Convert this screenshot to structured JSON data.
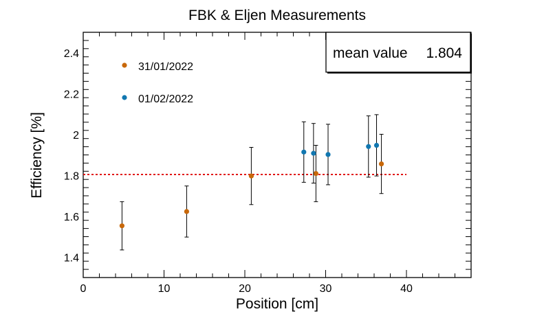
{
  "chart_data": {
    "type": "scatter",
    "title": "FBK & Eljen Measurements",
    "xlabel": "Position [cm]",
    "ylabel": "Efficiency [%]",
    "xlim": [
      0,
      48
    ],
    "ylim": [
      1.3,
      2.5
    ],
    "xticks": [
      0,
      10,
      20,
      30,
      40
    ],
    "yticks": [
      1.4,
      1.6,
      1.8,
      2.0,
      2.2,
      2.4
    ],
    "xtick_labels": [
      "0",
      "10",
      "20",
      "30",
      "40"
    ],
    "ytick_labels": [
      "1.4",
      "1.6",
      "1.8",
      "2",
      "2.2",
      "2.4"
    ],
    "series": [
      {
        "name": "31/01/2022",
        "color": "#c8680a",
        "points": [
          {
            "x": 4.8,
            "y": 1.553,
            "err": 0.118
          },
          {
            "x": 12.8,
            "y": 1.623,
            "err": 0.125
          },
          {
            "x": 20.8,
            "y": 1.797,
            "err": 0.14
          },
          {
            "x": 28.8,
            "y": 1.809,
            "err": 0.138
          },
          {
            "x": 36.9,
            "y": 1.856,
            "err": 0.145
          }
        ]
      },
      {
        "name": "01/02/2022",
        "color": "#1177b0",
        "points": [
          {
            "x": 27.3,
            "y": 1.914,
            "err": 0.148
          },
          {
            "x": 28.5,
            "y": 1.908,
            "err": 0.146
          },
          {
            "x": 30.3,
            "y": 1.902,
            "err": 0.148
          },
          {
            "x": 35.3,
            "y": 1.941,
            "err": 0.15
          },
          {
            "x": 36.3,
            "y": 1.947,
            "err": 0.15
          }
        ]
      }
    ],
    "mean_line": {
      "y": 1.804,
      "x_start": 0,
      "x_end": 40,
      "color": "#e01010"
    },
    "stats_box": {
      "label": "mean value",
      "value": "1.804"
    },
    "legend_position": "top-left"
  }
}
